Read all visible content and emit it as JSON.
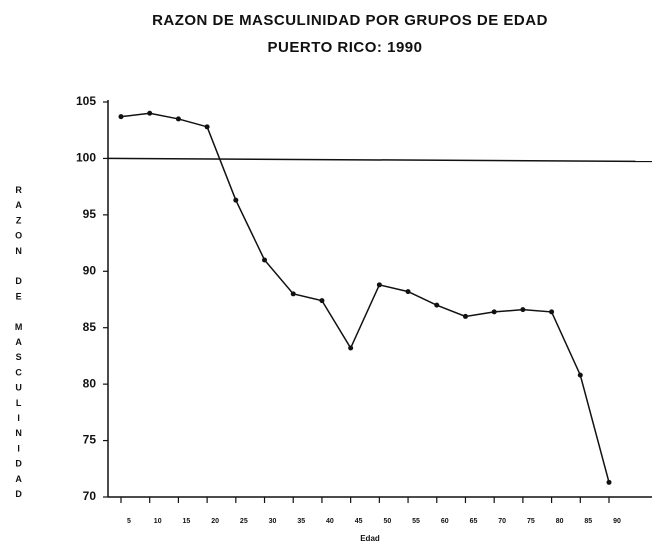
{
  "chart_data": {
    "type": "line",
    "title": "RAZON DE MASCULINIDAD POR GRUPOS DE EDAD",
    "subtitle": "PUERTO RICO: 1990",
    "y_label": "RAZON DE MASCULINIDAD",
    "x_label": "Edad",
    "categories": [
      "5",
      "10",
      "15",
      "20",
      "25",
      "30",
      "35",
      "40",
      "45",
      "50",
      "55",
      "60",
      "65",
      "70",
      "75",
      "80",
      "85",
      "90"
    ],
    "series": [
      {
        "name": "Razon de masculinidad",
        "color": "#111111",
        "values": [
          103.7,
          104,
          103.5,
          102.8,
          96.3,
          91,
          88,
          87.4,
          83.2,
          88.8,
          88.2,
          87,
          86,
          86.4,
          86.6,
          86.4,
          80.8,
          71.3
        ]
      }
    ],
    "ylim": [
      70,
      105
    ],
    "yticks": [
      70,
      75,
      80,
      85,
      90,
      95,
      100,
      105
    ],
    "reference_line": 100,
    "grid": false
  }
}
